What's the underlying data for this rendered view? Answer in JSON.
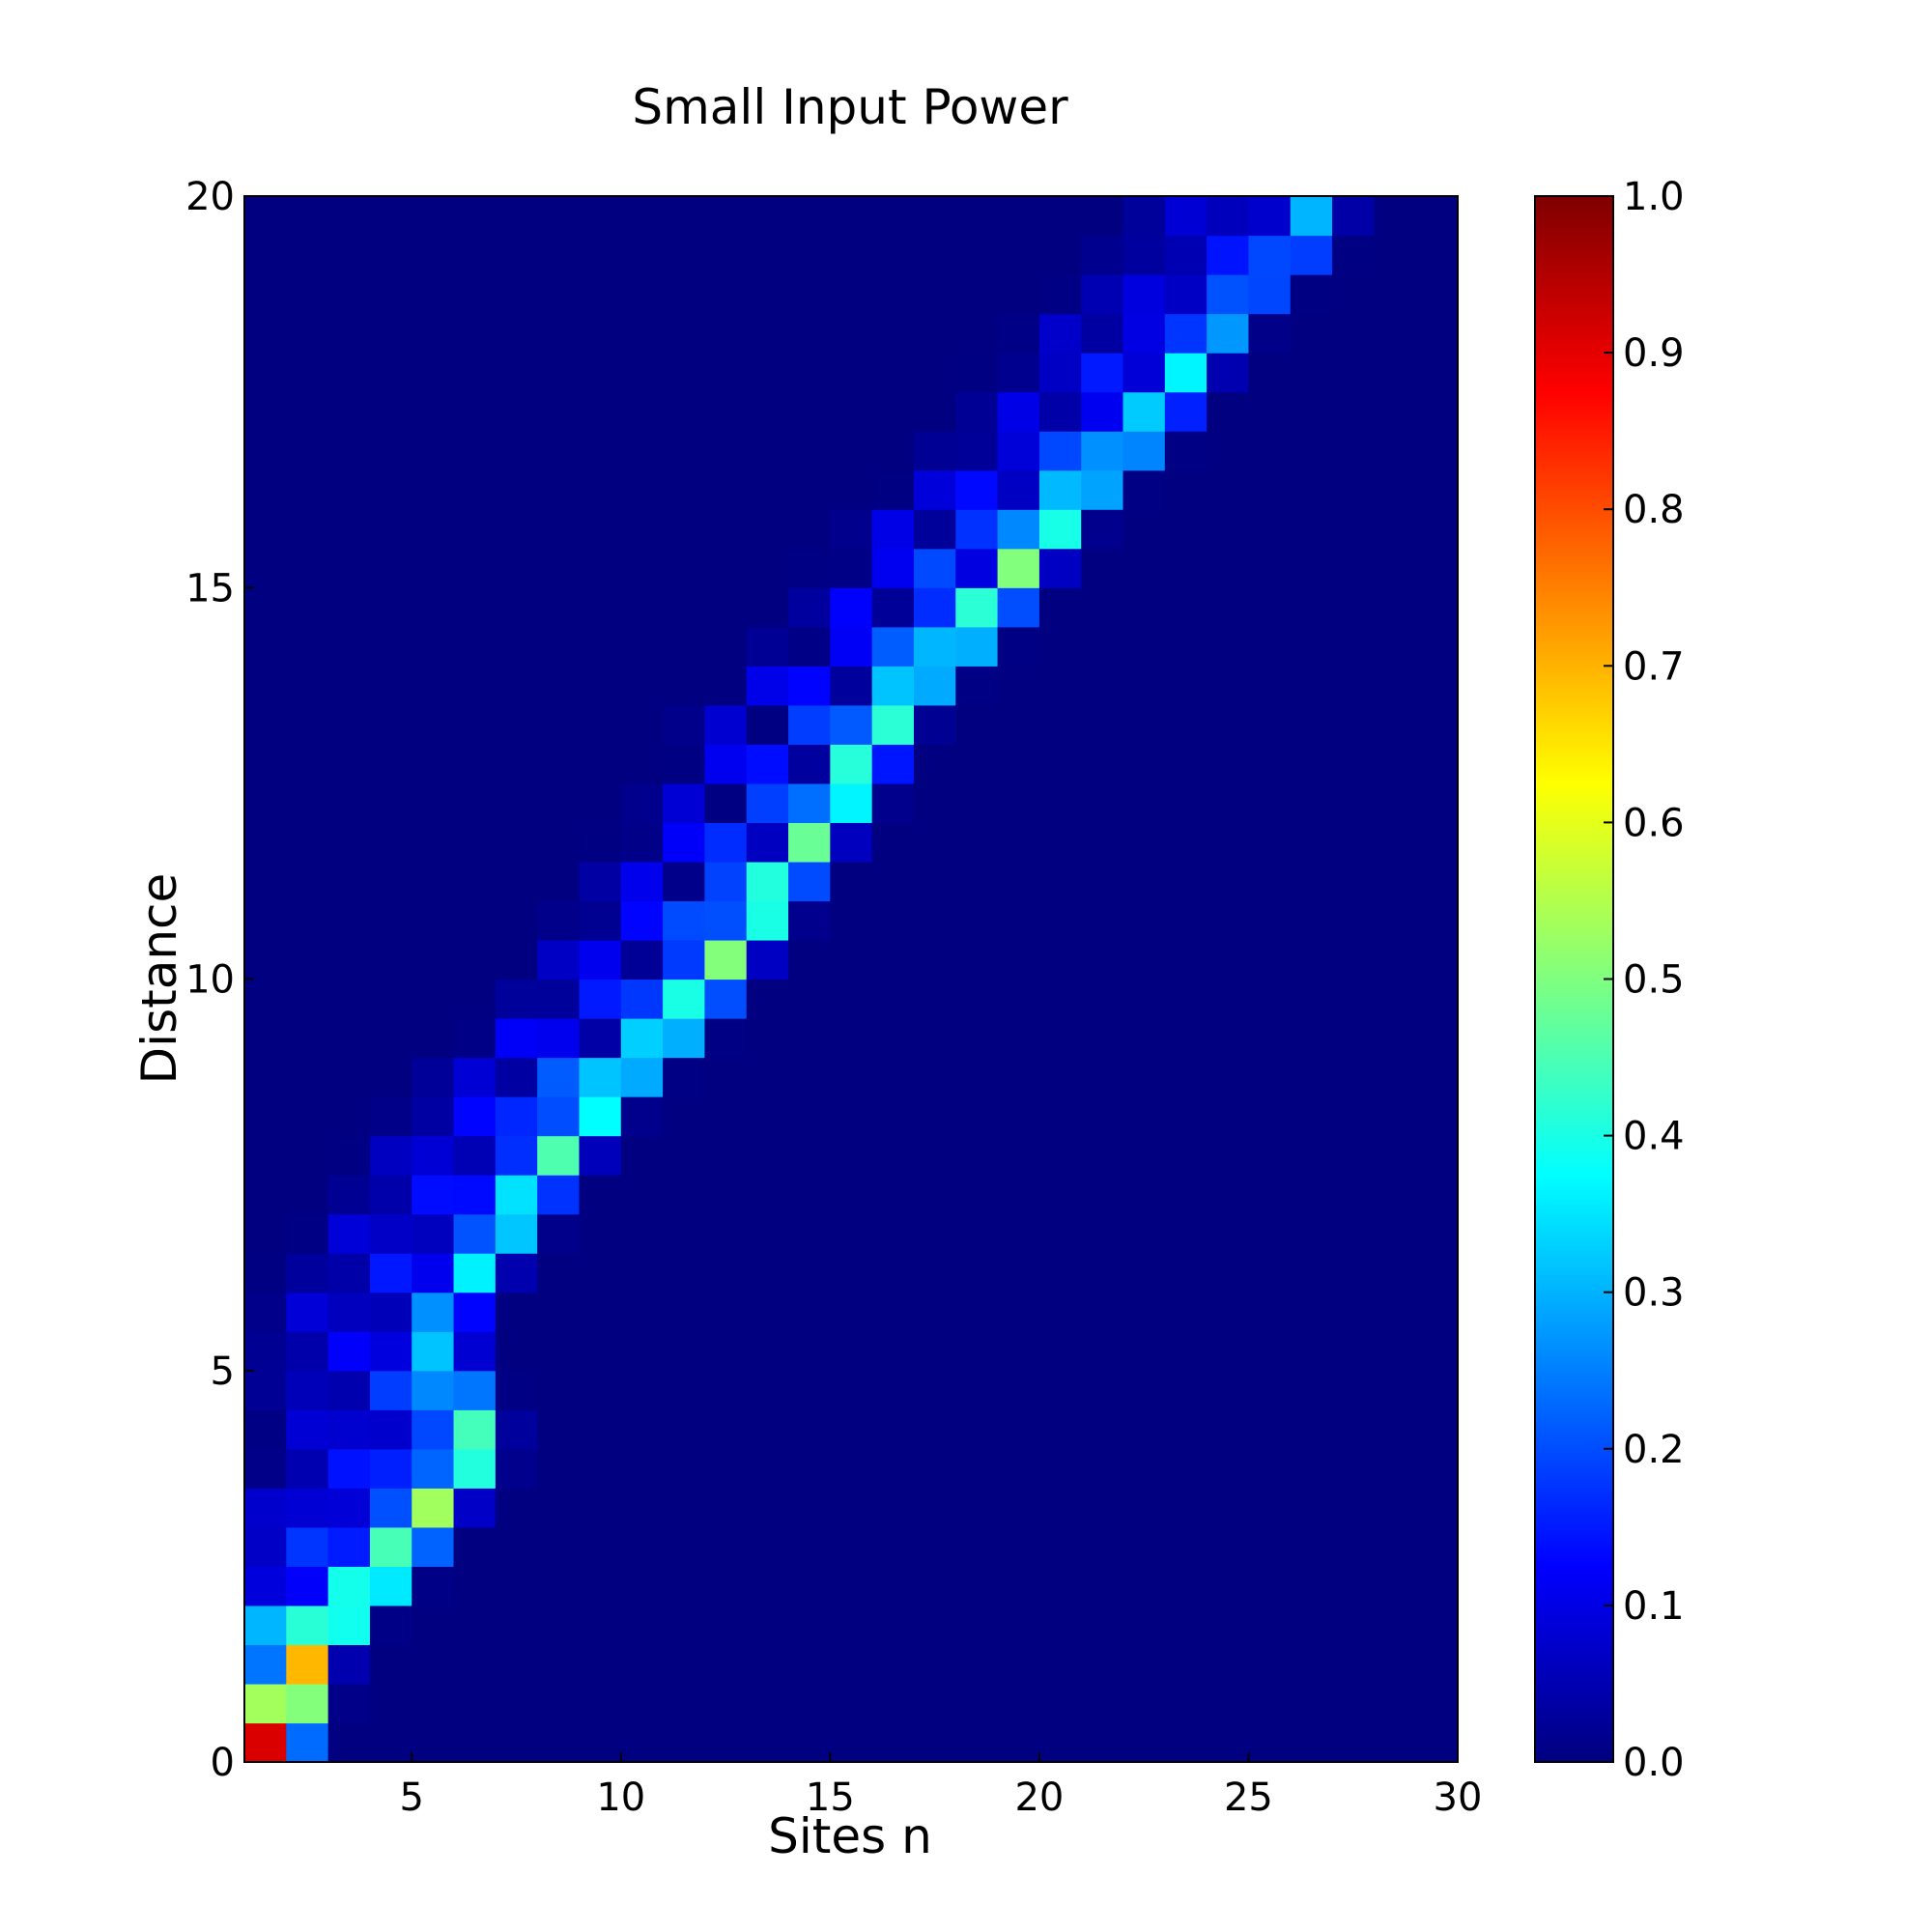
{
  "chart_data": {
    "type": "heatmap",
    "title": "Small Input Power",
    "xlabel": "Sites n",
    "ylabel": "Distance",
    "xlim": [
      1,
      30
    ],
    "ylim": [
      0,
      20
    ],
    "x_ticks": [
      5,
      10,
      15,
      20,
      25,
      30
    ],
    "y_ticks": [
      0,
      5,
      10,
      15,
      20
    ],
    "colorbar": {
      "min": 0.0,
      "max": 1.0,
      "colormap": "jet",
      "ticks": [
        "0.0",
        "0.1",
        "0.2",
        "0.3",
        "0.4",
        "0.5",
        "0.6",
        "0.7",
        "0.8",
        "0.9",
        "1.0"
      ]
    },
    "grid": false,
    "sites": 29,
    "distance_samples": 40,
    "distance_step": 0.5,
    "intensity_model": {
      "description": "Discrete diffraction-like beam launched at site 1, drifting to higher sites with distance; values in [0,1]",
      "peak_track": [
        {
          "distance": 0.0,
          "site": 1,
          "value": 1.0
        },
        {
          "distance": 1.5,
          "site": 2,
          "value": 0.68
        },
        {
          "distance": 2.5,
          "site": 4,
          "value": 0.56
        },
        {
          "distance": 4.0,
          "site": 6,
          "value": 0.5
        },
        {
          "distance": 5.5,
          "site": 5,
          "value": 0.3
        },
        {
          "distance": 7.0,
          "site": 7,
          "value": 0.42
        },
        {
          "distance": 8.5,
          "site": 9,
          "value": 0.48
        },
        {
          "distance": 9.5,
          "site": 11,
          "value": 0.5
        },
        {
          "distance": 11.0,
          "site": 13,
          "value": 0.5
        },
        {
          "distance": 12.5,
          "site": 15,
          "value": 0.45
        },
        {
          "distance": 13.5,
          "site": 16,
          "value": 0.48
        },
        {
          "distance": 14.5,
          "site": 18,
          "value": 0.5
        },
        {
          "distance": 16.0,
          "site": 20,
          "value": 0.5
        },
        {
          "distance": 17.0,
          "site": 22,
          "value": 0.4
        },
        {
          "distance": 18.5,
          "site": 24,
          "value": 0.33
        },
        {
          "distance": 19.5,
          "site": 26,
          "value": 0.3
        }
      ]
    }
  }
}
